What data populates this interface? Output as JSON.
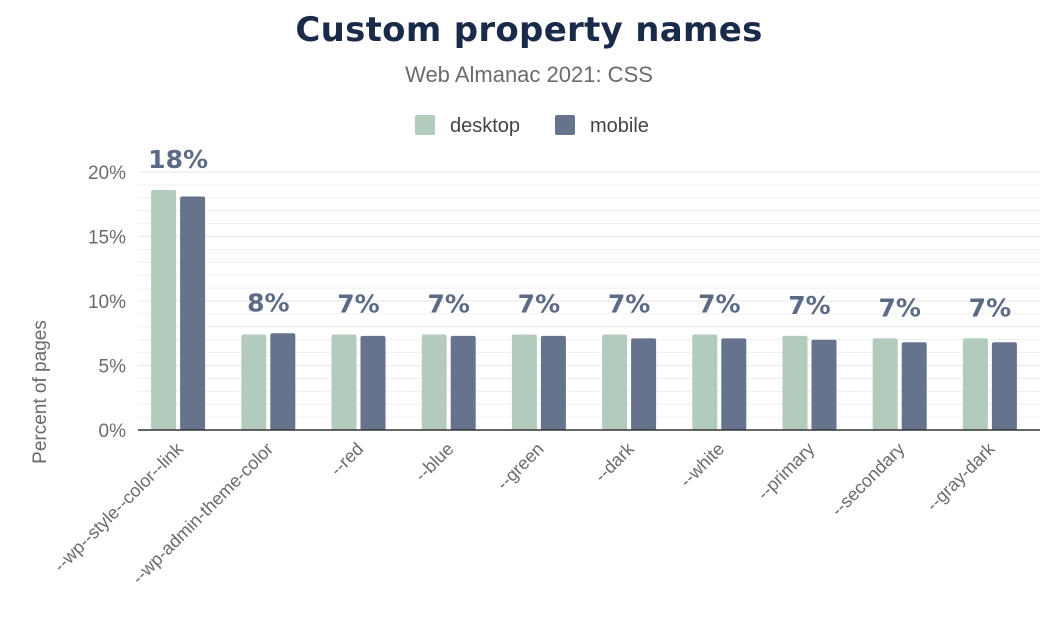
{
  "colors": {
    "desktop": "#b2cbbc",
    "mobile": "#66738d",
    "grid": "#ececec",
    "axis": "#333333",
    "data_label": "#5c6b85"
  },
  "chart_data": {
    "type": "bar",
    "title": "Custom property names",
    "subtitle": "Web Almanac 2021: CSS",
    "xlabel": "",
    "ylabel": "Percent of pages",
    "ylim": [
      0,
      20
    ],
    "yticks": [
      0,
      5,
      10,
      15,
      20
    ],
    "ytick_labels": [
      "0%",
      "5%",
      "10%",
      "15%",
      "20%"
    ],
    "grid": true,
    "legend_position": "top",
    "categories": [
      "--wp--style--color--link",
      "--wp-admin-theme-color",
      "--red",
      "--blue",
      "--green",
      "--dark",
      "--white",
      "--primary",
      "--secondary",
      "--gray-dark"
    ],
    "series": [
      {
        "name": "desktop",
        "values": [
          18.6,
          7.4,
          7.4,
          7.4,
          7.4,
          7.4,
          7.4,
          7.3,
          7.1,
          7.1
        ]
      },
      {
        "name": "mobile",
        "values": [
          18.1,
          7.5,
          7.3,
          7.3,
          7.3,
          7.1,
          7.1,
          7.0,
          6.8,
          6.8
        ]
      }
    ],
    "data_labels": [
      "18%",
      "8%",
      "7%",
      "7%",
      "7%",
      "7%",
      "7%",
      "7%",
      "7%",
      "7%"
    ]
  }
}
